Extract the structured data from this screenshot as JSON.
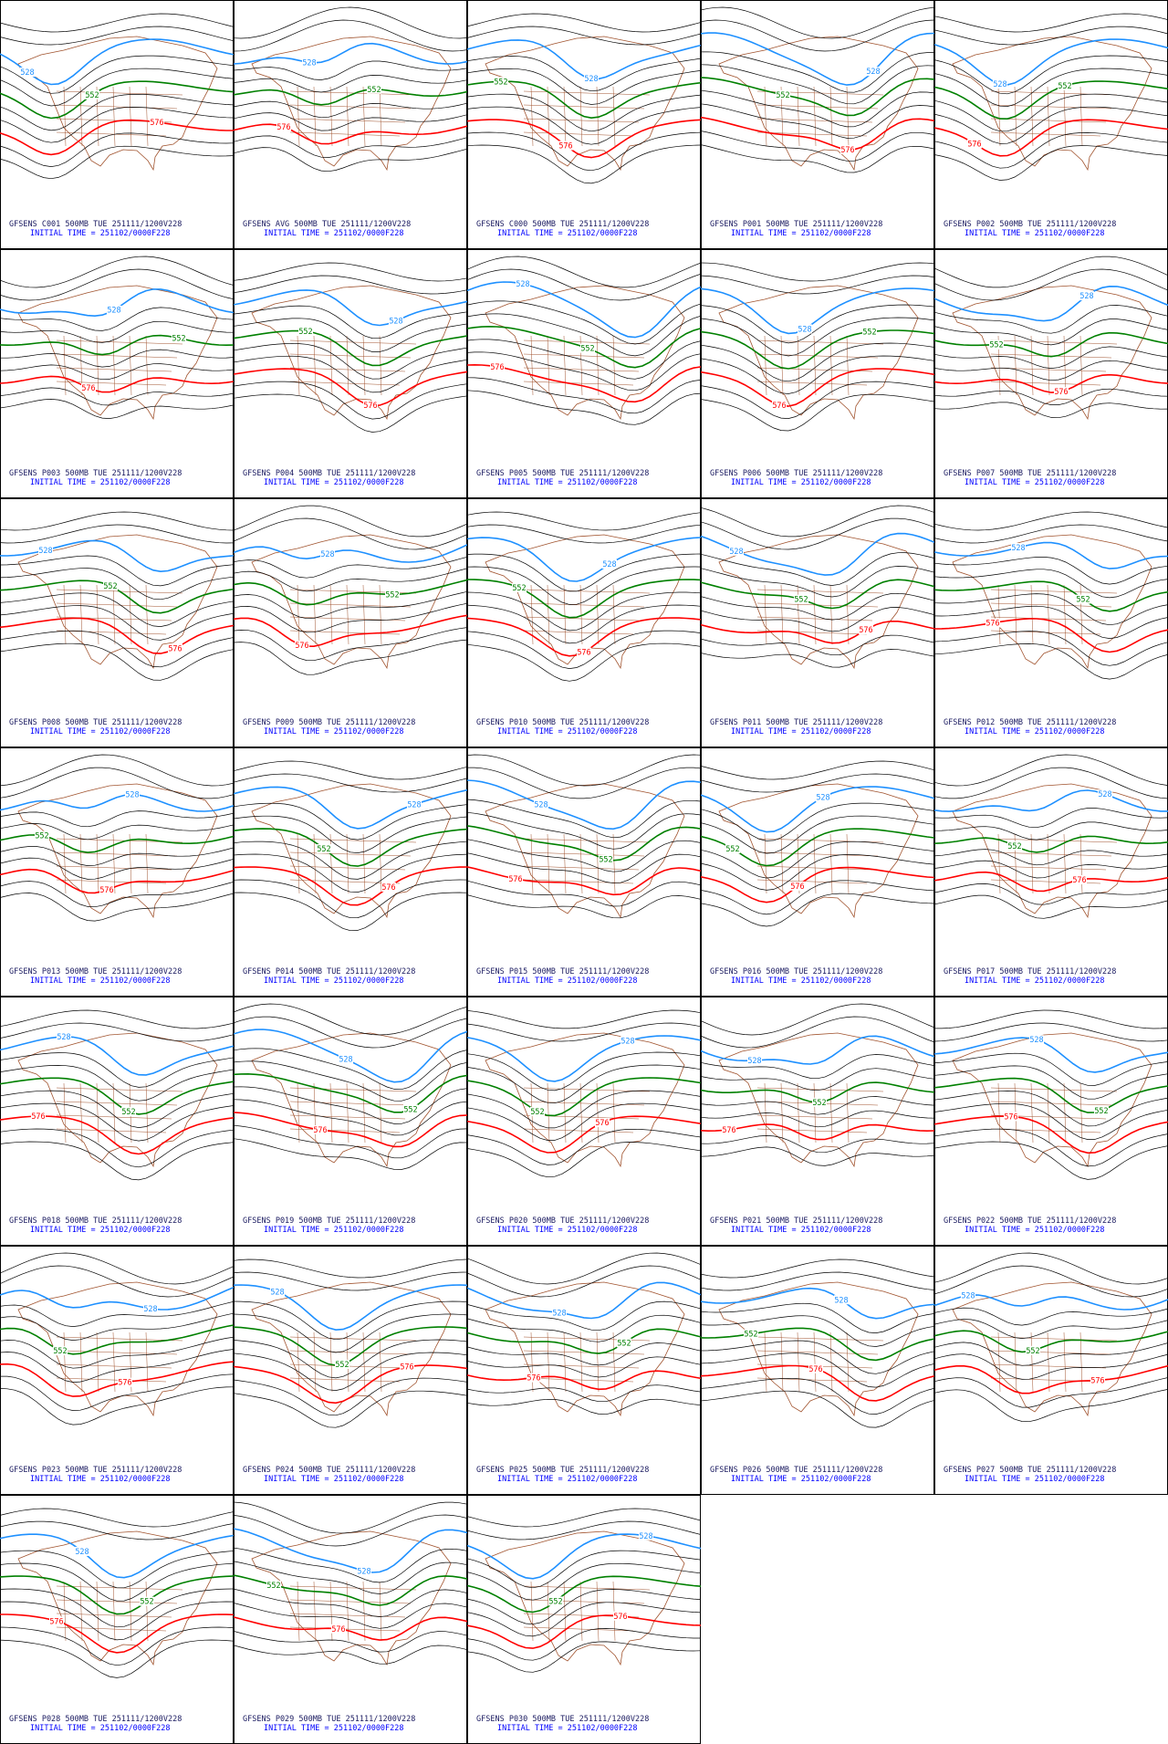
{
  "panels": [
    {
      "title": "GFSENS C001 500MB TUE 251111/1200V228",
      "subtitle": "INITIAL TIME = 251102/0000F228",
      "contours": [
        528,
        552,
        576
      ]
    },
    {
      "title": "GFSENS AVG 500MB TUE 251111/1200V228",
      "subtitle": "INITIAL TIME = 251102/0000F228",
      "contours": [
        528,
        552,
        576
      ]
    },
    {
      "title": "GFSENS C000 500MB TUE 251111/1200V228",
      "subtitle": "INITIAL TIME = 251102/0000F228",
      "contours": [
        528,
        552,
        576
      ]
    },
    {
      "title": "GFSENS P001 500MB TUE 251111/1200V228",
      "subtitle": "INITIAL TIME = 251102/0000F228",
      "contours": [
        528,
        552,
        576
      ]
    },
    {
      "title": "GFSENS P002 500MB TUE 251111/1200V228",
      "subtitle": "INITIAL TIME = 251102/0000F228",
      "contours": [
        528,
        552,
        576
      ]
    },
    {
      "title": "GFSENS P003 500MB TUE 251111/1200V228",
      "subtitle": "INITIAL TIME = 251102/0000F228",
      "contours": [
        528,
        552,
        576
      ]
    },
    {
      "title": "GFSENS P004 500MB TUE 251111/1200V228",
      "subtitle": "INITIAL TIME = 251102/0000F228",
      "contours": [
        528,
        552,
        576
      ]
    },
    {
      "title": "GFSENS P005 500MB TUE 251111/1200V228",
      "subtitle": "INITIAL TIME = 251102/0000F228",
      "contours": [
        528,
        552,
        576
      ]
    },
    {
      "title": "GFSENS P006 500MB TUE 251111/1200V228",
      "subtitle": "INITIAL TIME = 251102/0000F228",
      "contours": [
        528,
        552,
        576
      ]
    },
    {
      "title": "GFSENS P007 500MB TUE 251111/1200V228",
      "subtitle": "INITIAL TIME = 251102/0000F228",
      "contours": [
        528,
        552,
        576
      ]
    },
    {
      "title": "GFSENS P008 500MB TUE 251111/1200V228",
      "subtitle": "INITIAL TIME = 251102/0000F228",
      "contours": [
        528,
        552,
        576
      ]
    },
    {
      "title": "GFSENS P009 500MB TUE 251111/1200V228",
      "subtitle": "INITIAL TIME = 251102/0000F228",
      "contours": [
        528,
        552,
        576
      ]
    },
    {
      "title": "GFSENS P010 500MB TUE 251111/1200V228",
      "subtitle": "INITIAL TIME = 251102/0000F228",
      "contours": [
        528,
        552,
        576
      ]
    },
    {
      "title": "GFSENS P011 500MB TUE 251111/1200V228",
      "subtitle": "INITIAL TIME = 251102/0000F228",
      "contours": [
        528,
        552,
        576
      ]
    },
    {
      "title": "GFSENS P012 500MB TUE 251111/1200V228",
      "subtitle": "INITIAL TIME = 251102/0000F228",
      "contours": [
        528,
        552,
        576
      ]
    },
    {
      "title": "GFSENS P013 500MB TUE 251111/1200V228",
      "subtitle": "INITIAL TIME = 251102/0000F228",
      "contours": [
        528,
        552,
        576
      ]
    },
    {
      "title": "GFSENS P014 500MB TUE 251111/1200V228",
      "subtitle": "INITIAL TIME = 251102/0000F228",
      "contours": [
        528,
        552,
        576
      ]
    },
    {
      "title": "GFSENS P015 500MB TUE 251111/1200V228",
      "subtitle": "INITIAL TIME = 251102/0000F228",
      "contours": [
        528,
        552,
        576
      ]
    },
    {
      "title": "GFSENS P016 500MB TUE 251111/1200V228",
      "subtitle": "INITIAL TIME = 251102/0000F228",
      "contours": [
        528,
        552,
        576
      ]
    },
    {
      "title": "GFSENS P017 500MB TUE 251111/1200V228",
      "subtitle": "INITIAL TIME = 251102/0000F228",
      "contours": [
        528,
        552,
        576
      ]
    },
    {
      "title": "GFSENS P018 500MB TUE 251111/1200V228",
      "subtitle": "INITIAL TIME = 251102/0000F228",
      "contours": [
        528,
        552,
        576
      ]
    },
    {
      "title": "GFSENS P019 500MB TUE 251111/1200V228",
      "subtitle": "INITIAL TIME = 251102/0000F228",
      "contours": [
        528,
        552,
        576
      ]
    },
    {
      "title": "GFSENS P020 500MB TUE 251111/1200V228",
      "subtitle": "INITIAL TIME = 251102/0000F228",
      "contours": [
        528,
        552,
        576
      ]
    },
    {
      "title": "GFSENS P021 500MB TUE 251111/1200V228",
      "subtitle": "INITIAL TIME = 251102/0000F228",
      "contours": [
        528,
        552,
        576
      ]
    },
    {
      "title": "GFSENS P022 500MB TUE 251111/1200V228",
      "subtitle": "INITIAL TIME = 251102/0000F228",
      "contours": [
        528,
        552,
        576
      ]
    },
    {
      "title": "GFSENS P023 500MB TUE 251111/1200V228",
      "subtitle": "INITIAL TIME = 251102/0000F228",
      "contours": [
        528,
        552,
        576
      ]
    },
    {
      "title": "GFSENS P024 500MB TUE 251111/1200V228",
      "subtitle": "INITIAL TIME = 251102/0000F228",
      "contours": [
        528,
        552,
        576
      ]
    },
    {
      "title": "GFSENS P025 500MB TUE 251111/1200V228",
      "subtitle": "INITIAL TIME = 251102/0000F228",
      "contours": [
        528,
        552,
        576
      ]
    },
    {
      "title": "GFSENS P026 500MB TUE 251111/1200V228",
      "subtitle": "INITIAL TIME = 251102/0000F228",
      "contours": [
        528,
        552,
        576
      ]
    },
    {
      "title": "GFSENS P027 500MB TUE 251111/1200V228",
      "subtitle": "INITIAL TIME = 251102/0000F228",
      "contours": [
        528,
        552,
        576
      ]
    },
    {
      "title": "GFSENS P028 500MB TUE 251111/1200V228",
      "subtitle": "INITIAL TIME = 251102/0000F228",
      "contours": [
        528,
        552,
        576
      ]
    },
    {
      "title": "GFSENS P029 500MB TUE 251111/1200V228",
      "subtitle": "INITIAL TIME = 251102/0000F228",
      "contours": [
        528,
        552,
        576
      ]
    },
    {
      "title": "GFSENS P030 500MB TUE 251111/1200V228",
      "subtitle": "INITIAL TIME = 251102/0000F228",
      "contours": [
        528,
        552,
        576
      ]
    }
  ]
}
